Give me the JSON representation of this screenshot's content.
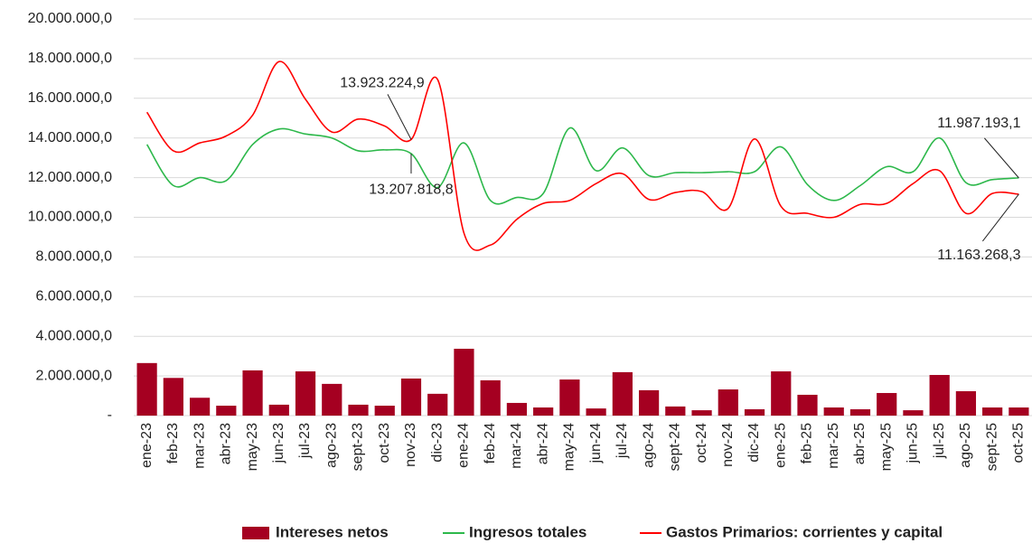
{
  "chart_data": {
    "type": "bar-line",
    "categories": [
      "ene-23",
      "feb-23",
      "mar-23",
      "abr-23",
      "may-23",
      "jun-23",
      "jul-23",
      "ago-23",
      "sept-23",
      "oct-23",
      "nov-23",
      "dic-23",
      "ene-24",
      "feb-24",
      "mar-24",
      "abr-24",
      "may-24",
      "jun-24",
      "jul-24",
      "ago-24",
      "sept-24",
      "oct-24",
      "nov-24",
      "dic-24",
      "ene-25",
      "feb-25",
      "mar-25",
      "abr-25",
      "may-25",
      "jun-25",
      "jul-25",
      "ago-25",
      "sept-25",
      "oct-25"
    ],
    "series": [
      {
        "name": "Intereses netos",
        "type": "bar",
        "color": "#a50021",
        "values": [
          2650000,
          1900000,
          900000,
          500000,
          2280000,
          550000,
          2230000,
          1600000,
          550000,
          500000,
          1870000,
          1100000,
          3370000,
          1780000,
          640000,
          410000,
          1820000,
          360000,
          2190000,
          1280000,
          460000,
          270000,
          1320000,
          320000,
          2230000,
          1050000,
          410000,
          320000,
          1140000,
          270000,
          2050000,
          1230000,
          410000,
          410000
        ]
      },
      {
        "name": "Ingresos totales",
        "type": "line",
        "color": "#2db84b",
        "values": [
          13670000,
          11600000,
          12000000,
          11850000,
          13670000,
          14450000,
          14200000,
          14000000,
          13350000,
          13400000,
          13207818.8,
          11500000,
          13750000,
          10850000,
          11000000,
          11200000,
          14500000,
          12350000,
          13500000,
          12100000,
          12250000,
          12250000,
          12300000,
          12300000,
          13550000,
          11650000,
          10850000,
          11600000,
          12550000,
          12300000,
          14000000,
          11750000,
          11900000,
          11987193.1
        ],
        "value_labels": [
          null,
          null,
          null,
          null,
          null,
          null,
          null,
          null,
          null,
          null,
          "13.207.818,8",
          null,
          null,
          null,
          null,
          null,
          null,
          null,
          null,
          null,
          null,
          null,
          null,
          null,
          null,
          null,
          null,
          null,
          null,
          null,
          null,
          null,
          null,
          "11.987.193,1"
        ]
      },
      {
        "name": "Gastos Primarios: corrientes y capital",
        "type": "line",
        "color": "#ff0000",
        "values": [
          15300000,
          13350000,
          13750000,
          14100000,
          15150000,
          17850000,
          15950000,
          14300000,
          14950000,
          14600000,
          13923224.9,
          16950000,
          9200000,
          8600000,
          9900000,
          10700000,
          10850000,
          11700000,
          12200000,
          10900000,
          11250000,
          11300000,
          10450000,
          13950000,
          10550000,
          10200000,
          10000000,
          10650000,
          10700000,
          11700000,
          12350000,
          10200000,
          11200000,
          11163268.3
        ],
        "value_labels": [
          null,
          null,
          null,
          null,
          null,
          null,
          null,
          null,
          null,
          null,
          "13.923.224,9",
          null,
          null,
          null,
          null,
          null,
          null,
          null,
          null,
          null,
          null,
          null,
          null,
          null,
          null,
          null,
          null,
          null,
          null,
          null,
          null,
          null,
          null,
          "11.163.268,3"
        ]
      }
    ],
    "ylim": [
      0,
      20000000
    ],
    "yticks": [
      {
        "value": 0,
        "label": "-"
      },
      {
        "value": 2000000,
        "label": "2.000.000,0"
      },
      {
        "value": 4000000,
        "label": "4.000.000,0"
      },
      {
        "value": 6000000,
        "label": "6.000.000,0"
      },
      {
        "value": 8000000,
        "label": "8.000.000,0"
      },
      {
        "value": 10000000,
        "label": "10.000.000,0"
      },
      {
        "value": 12000000,
        "label": "12.000.000,0"
      },
      {
        "value": 14000000,
        "label": "14.000.000,0"
      },
      {
        "value": 16000000,
        "label": "16.000.000,0"
      },
      {
        "value": 18000000,
        "label": "18.000.000,0"
      },
      {
        "value": 20000000,
        "label": "20.000.000,0"
      }
    ],
    "grid": true,
    "legend": "bottom"
  }
}
